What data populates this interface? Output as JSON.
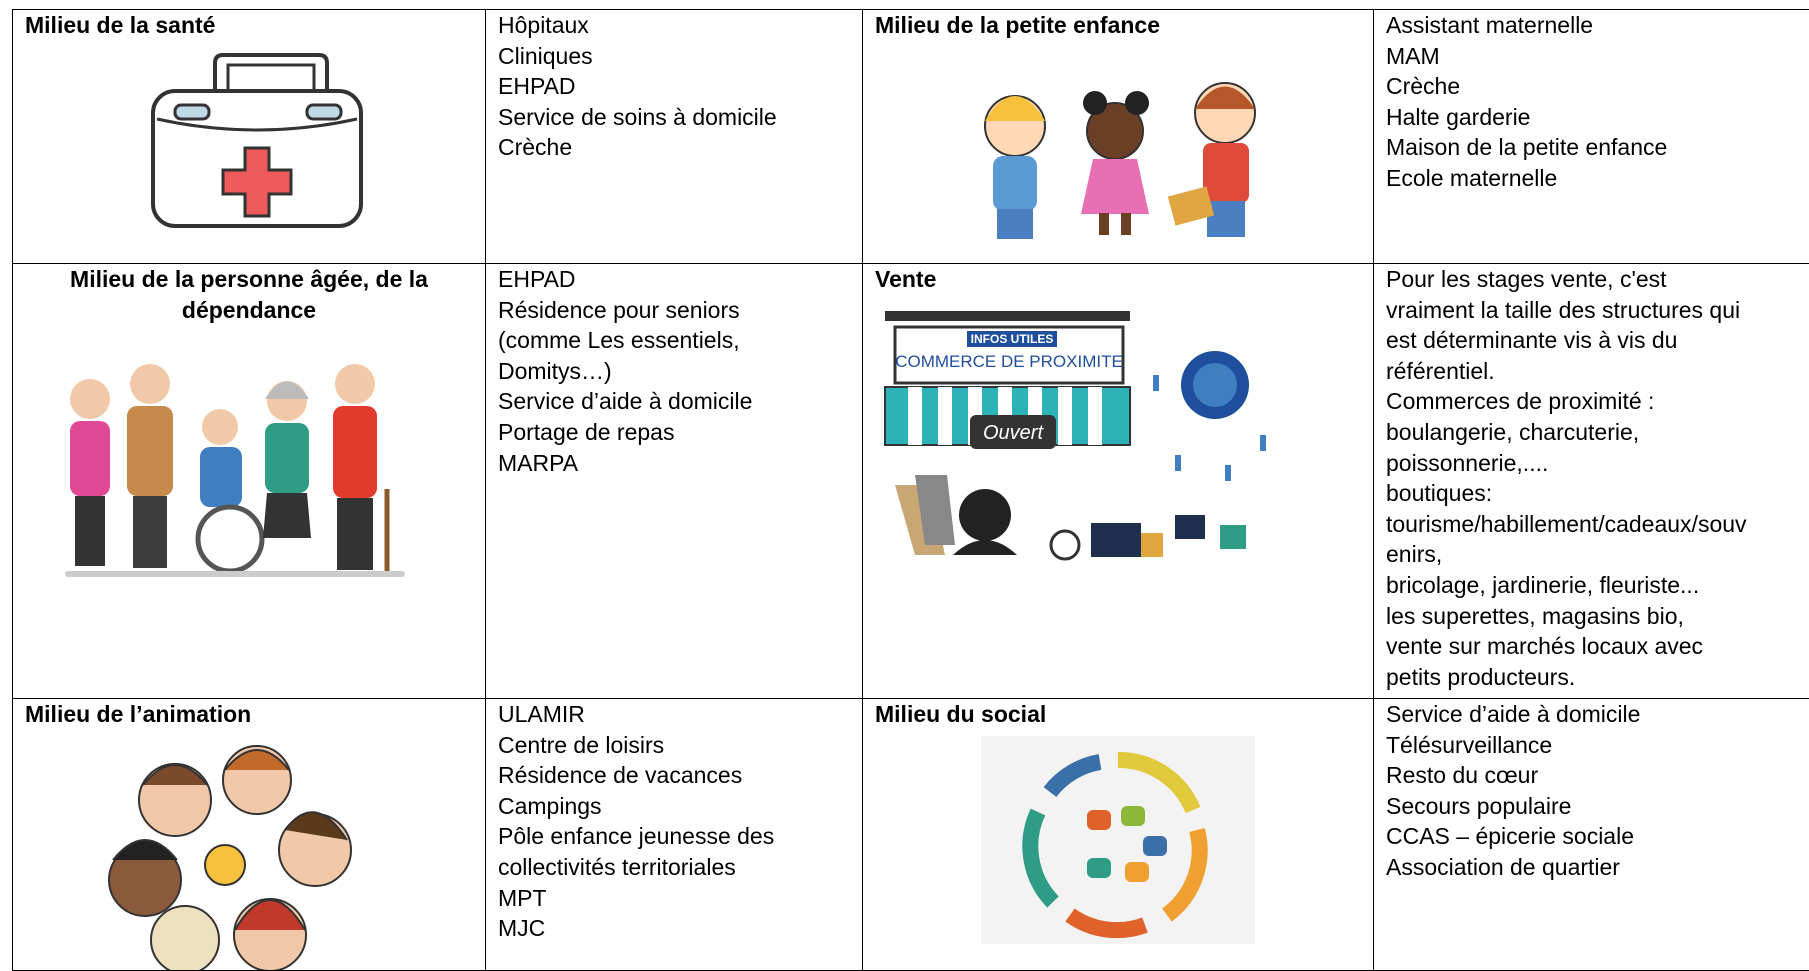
{
  "table": {
    "rows": [
      [
        {
          "title": "Milieu de la santé"
        },
        {
          "items": [
            "Hôpitaux",
            "Cliniques",
            "EHPAD",
            "Service de soins à domicile",
            "Crèche"
          ]
        },
        {
          "title": "Milieu de la petite enfance"
        },
        {
          "items": [
            "Assistant maternelle",
            "MAM",
            "Crèche",
            "Halte garderie",
            "Maison de la petite enfance",
            "Ecole maternelle"
          ]
        }
      ],
      [
        {
          "title": "Milieu de la personne âgée, de la dépendance"
        },
        {
          "items": [
            "EHPAD",
            "Résidence pour seniors",
            "(comme Les essentiels,",
            "Domitys…)",
            "Service d’aide à domicile",
            "Portage de repas",
            "MARPA"
          ]
        },
        {
          "title": "Vente",
          "image_texts": [
            "INFOS UTILES",
            "COMMERCE DE PROXIMITE",
            "Ouvert"
          ]
        },
        {
          "items": [
            "Pour les stages vente, c'est",
            "vraiment la taille des structures qui",
            "est déterminante vis à vis du",
            "référentiel.",
            "Commerces de proximité :",
            "boulangerie, charcuterie,",
            "poissonnerie,....",
            "boutiques:",
            "tourisme/habillement/cadeaux/souv",
            "enirs,",
            "bricolage, jardinerie, fleuriste...",
            "les superettes, magasins bio,",
            "vente sur marchés locaux avec",
            "petits producteurs."
          ]
        }
      ],
      [
        {
          "title": "Milieu de l’animation"
        },
        {
          "items": [
            "ULAMIR",
            "Centre de loisirs",
            "Résidence de vacances",
            "Campings",
            "Pôle enfance jeunesse des",
            "collectivités territoriales",
            "MPT",
            "MJC"
          ]
        },
        {
          "title": "Milieu du social"
        },
        {
          "items": [
            "Service d’aide à domicile",
            "Télésurveillance",
            "Resto du cœur",
            "Secours populaire",
            "CCAS – épicerie sociale",
            "Association de quartier"
          ]
        }
      ]
    ]
  }
}
